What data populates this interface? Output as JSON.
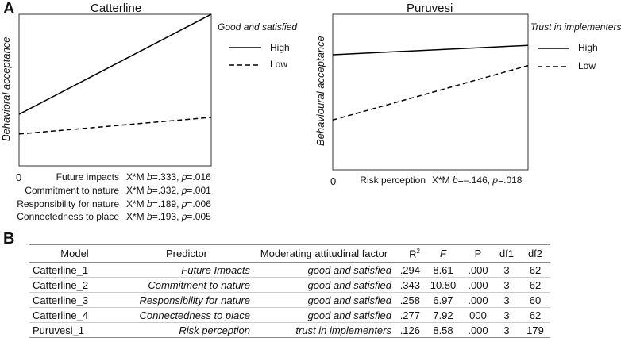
{
  "panel_a_label": "A",
  "panel_b_label": "B",
  "chart_data": [
    {
      "type": "line",
      "title": "Catterline",
      "ylabel": "Behavioral acceptance",
      "x_origin_label": "0",
      "legend_title": "Good and satisfied",
      "x": [
        0,
        1
      ],
      "ylim": [
        0,
        1
      ],
      "series": [
        {
          "name": "High",
          "style": "solid",
          "values": [
            0.34,
            1.0
          ]
        },
        {
          "name": "Low",
          "style": "dashed",
          "values": [
            0.21,
            0.32
          ]
        }
      ],
      "annotations": [
        {
          "label": "Future impacts",
          "stat_prefix": "X*M ",
          "b_label": "b",
          "b_value": "=.333, ",
          "p_label": "p",
          "p_value": "=.016"
        },
        {
          "label": "Commitment to nature",
          "stat_prefix": "X*M ",
          "b_label": "b",
          "b_value": "=.332, ",
          "p_label": "p",
          "p_value": "=.001"
        },
        {
          "label": "Responsibility for nature",
          "stat_prefix": "X*M ",
          "b_label": "b",
          "b_value": "=.189, ",
          "p_label": "p",
          "p_value": "=.006"
        },
        {
          "label": "Connectedness to place",
          "stat_prefix": "X*M ",
          "b_label": "b",
          "b_value": "=.193, ",
          "p_label": "p",
          "p_value": "=.005"
        }
      ]
    },
    {
      "type": "line",
      "title": "Puruvesi",
      "ylabel": "Behavioural acceptance",
      "x_origin_label": "0",
      "legend_title": "Trust in implementers",
      "x": [
        0,
        1
      ],
      "ylim": [
        0,
        1
      ],
      "series": [
        {
          "name": "High",
          "style": "solid",
          "values": [
            0.74,
            0.8
          ]
        },
        {
          "name": "Low",
          "style": "dashed",
          "values": [
            0.32,
            0.67
          ]
        }
      ],
      "annotations": [
        {
          "label": "Risk perception",
          "stat_prefix": "X*M ",
          "b_label": "b",
          "b_value": "=–.146, ",
          "p_label": "p",
          "p_value": "=.018"
        }
      ]
    },
    {
      "type": "table",
      "headers": {
        "model": "Model",
        "predictor": "Predictor",
        "moderating": "Moderating attitudinal factor",
        "r2": "R",
        "r2_sup": "2",
        "f": "F",
        "p": "P",
        "df1": "df1",
        "df2": "df2"
      },
      "rows": [
        {
          "model": "Catterline_1",
          "predictor": "Future Impacts",
          "moderating": "good and satisfied",
          "r2": ".294",
          "f": "8.61",
          "p": ".000",
          "df1": "3",
          "df2": "62"
        },
        {
          "model": "Catterline_2",
          "predictor": "Commitment to nature",
          "moderating": "good and satisfied",
          "r2": ".343",
          "f": "10.80",
          "p": ".000",
          "df1": "3",
          "df2": "62"
        },
        {
          "model": "Catterline_3",
          "predictor": "Responsibility for nature",
          "moderating": "good and satisfied",
          "r2": ".258",
          "f": "6.97",
          "p": ".000",
          "df1": "3",
          "df2": "60"
        },
        {
          "model": "Catterline_4",
          "predictor": "Connectedness to place",
          "moderating": "good and satisfied",
          "r2": ".277",
          "f": "7.92",
          "p": "000",
          "df1": "3",
          "df2": "62"
        },
        {
          "model": "Puruvesi_1",
          "predictor": "Risk perception",
          "moderating": "trust in implementers",
          "r2": ".126",
          "f": "8.58",
          "p": ".000",
          "df1": "3",
          "df2": "179"
        }
      ]
    }
  ]
}
